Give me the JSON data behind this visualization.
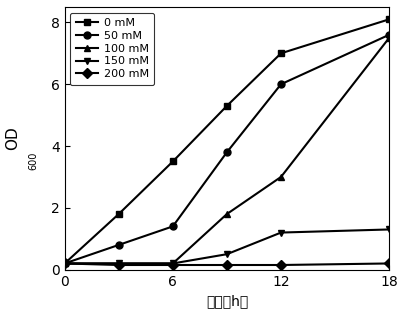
{
  "xlabel": "时间（h）",
  "xlim": [
    0,
    18
  ],
  "ylim": [
    0,
    8.5
  ],
  "xticks": [
    0,
    6,
    12,
    18
  ],
  "yticks": [
    0,
    2,
    4,
    6,
    8
  ],
  "series": [
    {
      "label": "0 mM",
      "x": [
        0,
        3,
        6,
        9,
        12,
        18
      ],
      "y": [
        0.2,
        1.8,
        3.5,
        5.3,
        7.0,
        8.1
      ],
      "marker": "s",
      "color": "#000000",
      "linewidth": 1.5,
      "markersize": 5
    },
    {
      "label": "50 mM",
      "x": [
        0,
        3,
        6,
        9,
        12,
        18
      ],
      "y": [
        0.2,
        0.8,
        1.4,
        3.8,
        6.0,
        7.6
      ],
      "marker": "o",
      "color": "#000000",
      "linewidth": 1.5,
      "markersize": 5
    },
    {
      "label": "100 mM",
      "x": [
        0,
        3,
        6,
        9,
        12,
        18
      ],
      "y": [
        0.2,
        0.2,
        0.2,
        1.8,
        3.0,
        7.5
      ],
      "marker": "^",
      "color": "#000000",
      "linewidth": 1.5,
      "markersize": 5
    },
    {
      "label": "150 mM",
      "x": [
        0,
        3,
        6,
        9,
        12,
        18
      ],
      "y": [
        0.2,
        0.2,
        0.2,
        0.5,
        1.2,
        1.3
      ],
      "marker": "v",
      "color": "#000000",
      "linewidth": 1.5,
      "markersize": 5
    },
    {
      "label": "200 mM",
      "x": [
        0,
        3,
        6,
        9,
        12,
        18
      ],
      "y": [
        0.2,
        0.15,
        0.15,
        0.15,
        0.15,
        0.2
      ],
      "marker": "D",
      "color": "#000000",
      "linewidth": 1.5,
      "markersize": 5
    }
  ],
  "legend_loc": "upper left",
  "background_color": "#ffffff",
  "font_size": 10,
  "tick_font_size": 10
}
